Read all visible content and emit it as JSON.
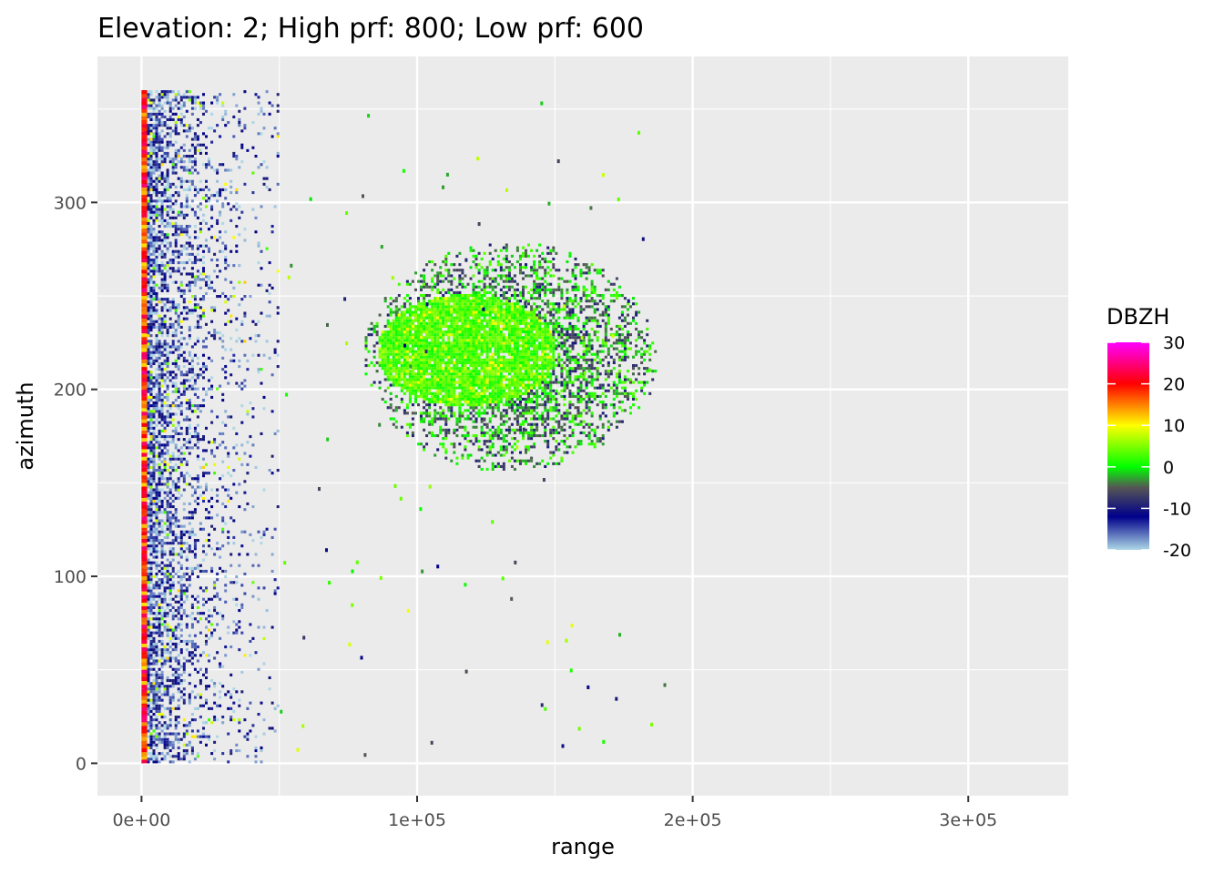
{
  "chart_data": {
    "type": "heatmap",
    "title": "Elevation: 2; High prf: 800; Low prf: 600",
    "xlabel": "range",
    "ylabel": "azimuth",
    "xlim": [
      -16000,
      336000
    ],
    "ylim": [
      -18,
      363
    ],
    "x_ticks": [
      0,
      100000,
      200000,
      300000
    ],
    "x_tick_labels": [
      "0e+00",
      "1e+05",
      "2e+05",
      "3e+05"
    ],
    "y_ticks": [
      0,
      100,
      200,
      300
    ],
    "y_tick_labels": [
      "0",
      "100",
      "200",
      "300"
    ],
    "grid": true,
    "colorbar": {
      "title": "DBZH",
      "range": [
        -20,
        30
      ],
      "ticks": [
        30,
        20,
        10,
        0,
        -10,
        -20
      ],
      "tick_labels": [
        "30",
        "20",
        "10",
        "0",
        "-10",
        "-20"
      ],
      "placement": "right",
      "color_stops": [
        {
          "value": -20,
          "color": "#add8e6"
        },
        {
          "value": -12,
          "color": "#00008b"
        },
        {
          "value": -5,
          "color": "#555555"
        },
        {
          "value": 0,
          "color": "#00ff00"
        },
        {
          "value": 10,
          "color": "#ffff00"
        },
        {
          "value": 20,
          "color": "#ff0000"
        },
        {
          "value": 30,
          "color": "#ff00ff"
        }
      ]
    },
    "regions": [
      {
        "feature": "near-range clutter",
        "range": [
          0,
          50000
        ],
        "azimuth": [
          0,
          360
        ],
        "dbzh_typical": -15
      },
      {
        "feature": "near-range ring",
        "range": [
          0,
          2000
        ],
        "azimuth": [
          0,
          360
        ],
        "dbzh_typical": 18
      },
      {
        "feature": "echo core",
        "range": [
          85000,
          150000
        ],
        "azimuth": [
          190,
          250
        ],
        "dbzh_typical": 3
      },
      {
        "feature": "echo outer",
        "range": [
          80000,
          187000
        ],
        "azimuth": [
          155,
          278
        ],
        "dbzh_typical": -3
      }
    ]
  }
}
